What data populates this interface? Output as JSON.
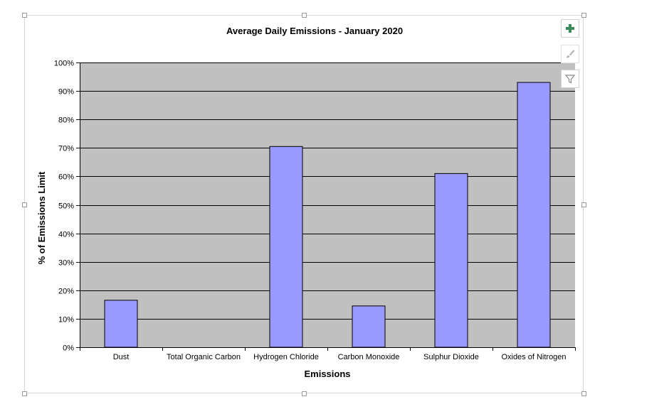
{
  "chart_data": {
    "type": "bar",
    "title": "Average Daily Emissions - January 2020",
    "xlabel": "Emissions",
    "ylabel": "% of Emissions Limit",
    "categories": [
      "Dust",
      "Total Organic Carbon",
      "Hydrogen Chloride",
      "Carbon Monoxide",
      "Sulphur Dioxide",
      "Oxides of Nitrogen"
    ],
    "values": [
      16.5,
      0,
      70.5,
      14.5,
      61,
      93
    ],
    "ylim": [
      0,
      100
    ],
    "yticks": [
      "0%",
      "10%",
      "20%",
      "30%",
      "40%",
      "50%",
      "60%",
      "70%",
      "80%",
      "90%",
      "100%"
    ],
    "grid": true,
    "legend": "none",
    "colors": {
      "bar": "#9999ff",
      "bar_border": "#000000",
      "plot_background": "#c0c0c0"
    }
  },
  "toolbar": {
    "add_icon": "plus-icon",
    "style_icon": "brush-icon",
    "filter_icon": "filter-icon"
  }
}
